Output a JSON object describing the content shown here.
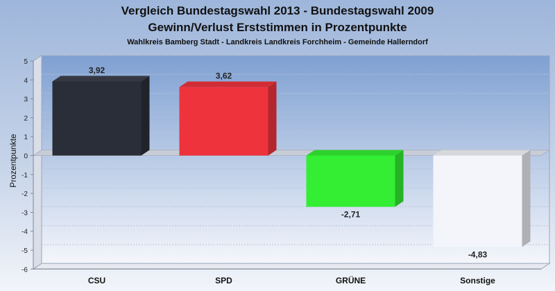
{
  "chart_data": {
    "type": "bar",
    "title": "Vergleich Bundestagswahl 2013 - Bundestagswahl 2009",
    "subtitle": "Gewinn/Verlust Erststimmen in Prozentpunkte",
    "subsubtitle": "Wahlkreis Bamberg Stadt - Landkreis Landkreis Forchheim - Gemeinde Hallerndorf",
    "ylabel": "Prozentpunkte",
    "xlabel": "",
    "categories": [
      "CSU",
      "SPD",
      "GRÜNE",
      "Sonstige"
    ],
    "values": [
      3.92,
      3.62,
      -2.71,
      -4.83
    ],
    "value_labels": [
      "3,92",
      "3,62",
      "-2,71",
      "-4,83"
    ],
    "ylim": [
      -6,
      5
    ],
    "yticks": [
      5,
      4,
      3,
      2,
      1,
      0,
      -1,
      -2,
      -3,
      -4,
      -5,
      -6
    ],
    "ytick_labels": [
      "5",
      "4",
      "3",
      "2",
      "1",
      "0",
      "-1",
      "-2",
      "-3",
      "-4",
      "-5",
      "-6"
    ],
    "colors": [
      "#2a2e38",
      "#ee333c",
      "#33ee33",
      "#f3f5fa"
    ],
    "grid": true,
    "legend": "none"
  }
}
